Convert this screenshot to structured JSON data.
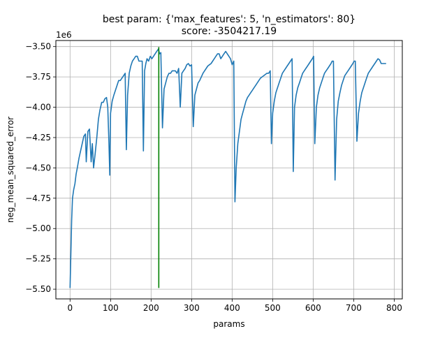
{
  "chart_data": {
    "type": "line",
    "title_line1": "best param: {'max_features': 5, 'n_estimators': 80}",
    "title_line2": "score: -3504217.19",
    "xlabel": "params",
    "ylabel": "neg_mean_squared_error",
    "y_offset_label": "1e6",
    "xlim": [
      -35,
      820
    ],
    "ylim": [
      -5.58,
      -3.45
    ],
    "x_ticks": [
      0,
      100,
      200,
      300,
      400,
      500,
      600,
      700,
      800
    ],
    "y_ticks": [
      -5.5,
      -5.25,
      -5.0,
      -4.75,
      -4.5,
      -4.25,
      -4.0,
      -3.75,
      -3.5
    ],
    "grid": true,
    "series": [
      {
        "color": "#1f77b4",
        "x": [
          0,
          2,
          4,
          6,
          9,
          12,
          15,
          18,
          22,
          26,
          30,
          34,
          38,
          40,
          44,
          48,
          52,
          55,
          58,
          62,
          66,
          70,
          74,
          78,
          82,
          86,
          90,
          93,
          96,
          98,
          100,
          104,
          108,
          112,
          116,
          120,
          124,
          128,
          132,
          136,
          139,
          142,
          146,
          150,
          154,
          158,
          162,
          166,
          170,
          174,
          178,
          181,
          184,
          187,
          190,
          194,
          198,
          202,
          206,
          210,
          214,
          218,
          221,
          224,
          228,
          232,
          236,
          240,
          244,
          248,
          252,
          256,
          260,
          264,
          268,
          272,
          276,
          280,
          284,
          288,
          292,
          296,
          300,
          304,
          308,
          312,
          316,
          320,
          324,
          328,
          332,
          336,
          340,
          344,
          348,
          352,
          356,
          360,
          364,
          368,
          372,
          376,
          380,
          384,
          388,
          392,
          396,
          400,
          404,
          407,
          410,
          414,
          418,
          422,
          426,
          430,
          434,
          438,
          442,
          446,
          450,
          454,
          458,
          462,
          466,
          470,
          474,
          478,
          482,
          486,
          490,
          494,
          497,
          500,
          504,
          508,
          512,
          516,
          520,
          524,
          528,
          532,
          536,
          540,
          544,
          548,
          551,
          554,
          558,
          562,
          566,
          570,
          574,
          578,
          582,
          586,
          590,
          594,
          598,
          601,
          604,
          608,
          612,
          616,
          620,
          624,
          628,
          632,
          636,
          640,
          644,
          647,
          650,
          654,
          658,
          662,
          666,
          670,
          674,
          678,
          682,
          686,
          690,
          694,
          698,
          701,
          704,
          708,
          712,
          716,
          720,
          724,
          728,
          732,
          736,
          740,
          744,
          748,
          752,
          756,
          760,
          764,
          768,
          772,
          776,
          780
        ],
        "y": [
          -5.49,
          -5.2,
          -4.93,
          -4.75,
          -4.68,
          -4.63,
          -4.55,
          -4.5,
          -4.42,
          -4.36,
          -4.3,
          -4.24,
          -4.22,
          -4.45,
          -4.2,
          -4.18,
          -4.45,
          -4.3,
          -4.5,
          -4.38,
          -4.25,
          -4.1,
          -4.02,
          -3.96,
          -3.96,
          -3.93,
          -3.92,
          -4.0,
          -4.3,
          -4.56,
          -4.05,
          -3.95,
          -3.9,
          -3.86,
          -3.82,
          -3.78,
          -3.78,
          -3.76,
          -3.74,
          -3.72,
          -4.35,
          -3.9,
          -3.72,
          -3.66,
          -3.62,
          -3.6,
          -3.58,
          -3.58,
          -3.62,
          -3.62,
          -3.62,
          -4.36,
          -3.7,
          -3.64,
          -3.6,
          -3.62,
          -3.58,
          -3.6,
          -3.58,
          -3.56,
          -3.54,
          -3.52,
          -3.56,
          -3.55,
          -4.17,
          -3.85,
          -3.8,
          -3.75,
          -3.72,
          -3.72,
          -3.7,
          -3.7,
          -3.7,
          -3.72,
          -3.68,
          -4.0,
          -3.72,
          -3.7,
          -3.68,
          -3.65,
          -3.64,
          -3.66,
          -3.65,
          -4.16,
          -3.9,
          -3.85,
          -3.8,
          -3.78,
          -3.75,
          -3.72,
          -3.7,
          -3.68,
          -3.66,
          -3.65,
          -3.64,
          -3.62,
          -3.6,
          -3.58,
          -3.56,
          -3.56,
          -3.6,
          -3.58,
          -3.56,
          -3.54,
          -3.56,
          -3.58,
          -3.6,
          -3.65,
          -3.62,
          -4.78,
          -4.5,
          -4.3,
          -4.2,
          -4.1,
          -4.05,
          -4.0,
          -3.95,
          -3.92,
          -3.9,
          -3.88,
          -3.86,
          -3.84,
          -3.82,
          -3.8,
          -3.78,
          -3.76,
          -3.75,
          -3.74,
          -3.73,
          -3.72,
          -3.72,
          -3.7,
          -4.3,
          -4.05,
          -3.95,
          -3.88,
          -3.84,
          -3.8,
          -3.76,
          -3.72,
          -3.7,
          -3.68,
          -3.66,
          -3.64,
          -3.62,
          -3.6,
          -4.53,
          -4.0,
          -3.9,
          -3.84,
          -3.8,
          -3.76,
          -3.72,
          -3.7,
          -3.68,
          -3.66,
          -3.64,
          -3.62,
          -3.6,
          -3.58,
          -4.3,
          -4.0,
          -3.9,
          -3.84,
          -3.8,
          -3.76,
          -3.72,
          -3.7,
          -3.68,
          -3.66,
          -3.64,
          -3.62,
          -3.62,
          -4.6,
          -4.1,
          -3.95,
          -3.88,
          -3.82,
          -3.78,
          -3.74,
          -3.72,
          -3.7,
          -3.68,
          -3.66,
          -3.64,
          -3.62,
          -3.62,
          -4.28,
          -4.05,
          -3.95,
          -3.88,
          -3.84,
          -3.8,
          -3.76,
          -3.72,
          -3.7,
          -3.68,
          -3.66,
          -3.64,
          -3.62,
          -3.6,
          -3.61,
          -3.64,
          -3.64,
          -3.64,
          -3.64
        ]
      }
    ],
    "best_marker": {
      "color": "#008000",
      "x": 219,
      "y_from": -5.49,
      "y_to": -3.504
    }
  }
}
